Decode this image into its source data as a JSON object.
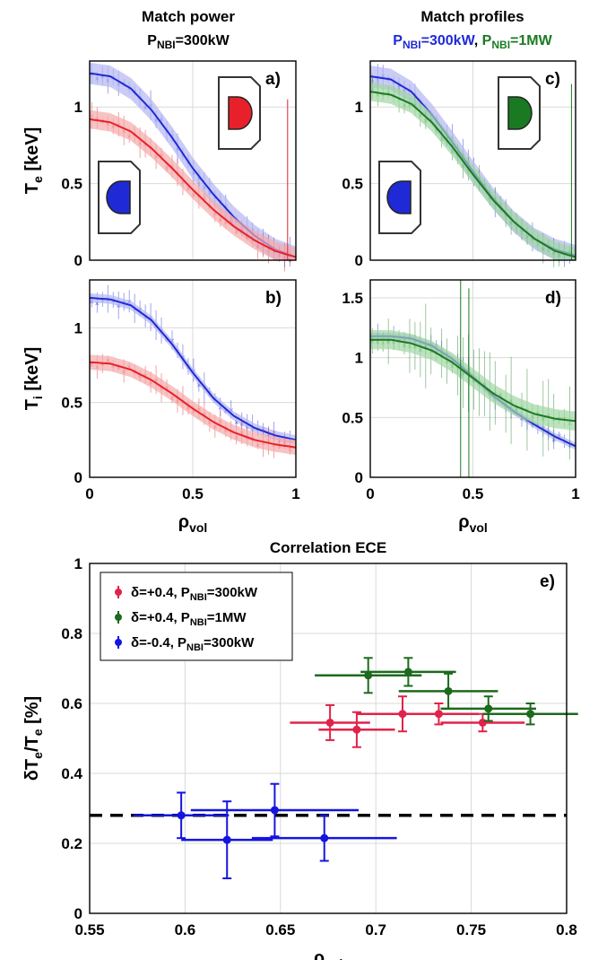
{
  "colors": {
    "red": "#e8202a",
    "blue": "#1f2ad6",
    "green": "#1a7a22",
    "red_band": "#f5a9a9",
    "blue_band": "#b3b6f2",
    "green_band": "#9fd7a3",
    "ece_red": "#e0234a",
    "ece_green": "#1c6a1c",
    "ece_blue": "#1515e0",
    "black": "#000000"
  },
  "headers": {
    "left_title": "Match power",
    "left_sub": {
      "p": "P",
      "sub": "NBI",
      "rest": "=300kW"
    },
    "right_title": "Match profiles",
    "right_sub": [
      {
        "p": "P",
        "sub": "NBI",
        "rest": "=300kW",
        "sep": ",",
        "color": "blue"
      },
      {
        "p": "P",
        "sub": "NBI",
        "rest": "=1MW",
        "color": "green"
      }
    ]
  },
  "chart_data": [
    {
      "panel": "a)",
      "type": "line",
      "ylabel": {
        "main": "T",
        "sub": "e",
        "rest": " [keV]"
      },
      "xlim": [
        0,
        1
      ],
      "ylim": [
        0,
        1.3
      ],
      "yticks": [
        0,
        0.5,
        1
      ],
      "xticks": [
        0,
        0.5,
        1
      ],
      "series": [
        {
          "color": "blue",
          "x": [
            0,
            0.1,
            0.2,
            0.3,
            0.4,
            0.5,
            0.6,
            0.7,
            0.8,
            0.9,
            1.0
          ],
          "y": [
            1.22,
            1.2,
            1.12,
            0.98,
            0.8,
            0.6,
            0.43,
            0.28,
            0.16,
            0.07,
            0.02
          ],
          "band": 0.07
        },
        {
          "color": "red",
          "x": [
            0,
            0.1,
            0.2,
            0.3,
            0.4,
            0.5,
            0.6,
            0.7,
            0.8,
            0.9,
            1.0
          ],
          "y": [
            0.92,
            0.9,
            0.84,
            0.73,
            0.6,
            0.46,
            0.33,
            0.22,
            0.13,
            0.06,
            0.02
          ],
          "band": 0.06
        }
      ],
      "insets": [
        {
          "fill": "red",
          "pos": "top-right",
          "shape": "right-d"
        },
        {
          "fill": "blue",
          "pos": "bottom-left",
          "shape": "left-d"
        }
      ]
    },
    {
      "panel": "b)",
      "type": "line",
      "ylabel": {
        "main": "T",
        "sub": "i",
        "rest": " [keV]"
      },
      "xlabel": {
        "main": "ρ",
        "sub": "vol"
      },
      "xlim": [
        0,
        1
      ],
      "ylim": [
        0,
        1.32
      ],
      "yticks": [
        0,
        0.5,
        1
      ],
      "xticks": [
        0,
        0.5,
        1
      ],
      "xticklabels": [
        "0",
        "0.5",
        "1"
      ],
      "series": [
        {
          "color": "blue",
          "x": [
            0,
            0.1,
            0.2,
            0.3,
            0.4,
            0.5,
            0.6,
            0.7,
            0.8,
            0.9,
            1.0
          ],
          "y": [
            1.2,
            1.19,
            1.15,
            1.05,
            0.89,
            0.7,
            0.53,
            0.41,
            0.33,
            0.28,
            0.25
          ],
          "band": 0.03
        },
        {
          "color": "red",
          "x": [
            0,
            0.1,
            0.2,
            0.3,
            0.4,
            0.5,
            0.6,
            0.7,
            0.8,
            0.9,
            1.0
          ],
          "y": [
            0.77,
            0.76,
            0.72,
            0.65,
            0.56,
            0.46,
            0.37,
            0.3,
            0.25,
            0.22,
            0.2
          ],
          "band": 0.05
        }
      ]
    },
    {
      "panel": "c)",
      "type": "line",
      "xlim": [
        0,
        1
      ],
      "ylim": [
        0,
        1.3
      ],
      "yticks": [
        0,
        0.5,
        1
      ],
      "xticks": [
        0,
        0.5,
        1
      ],
      "series": [
        {
          "color": "blue",
          "x": [
            0,
            0.1,
            0.2,
            0.3,
            0.4,
            0.5,
            0.6,
            0.7,
            0.8,
            0.9,
            1.0
          ],
          "y": [
            1.2,
            1.18,
            1.1,
            0.95,
            0.77,
            0.58,
            0.4,
            0.25,
            0.14,
            0.07,
            0.03
          ],
          "band": 0.07
        },
        {
          "color": "green",
          "x": [
            0,
            0.1,
            0.2,
            0.3,
            0.4,
            0.5,
            0.6,
            0.7,
            0.8,
            0.9,
            1.0
          ],
          "y": [
            1.1,
            1.08,
            1.02,
            0.9,
            0.74,
            0.56,
            0.39,
            0.25,
            0.14,
            0.06,
            0.02
          ],
          "band": 0.06
        }
      ],
      "insets": [
        {
          "fill": "green",
          "pos": "top-right",
          "shape": "right-d"
        },
        {
          "fill": "blue",
          "pos": "bottom-left",
          "shape": "left-d"
        }
      ]
    },
    {
      "panel": "d)",
      "type": "line",
      "xlabel": {
        "main": "ρ",
        "sub": "vol"
      },
      "xlim": [
        0,
        1
      ],
      "ylim": [
        0,
        1.65
      ],
      "yticks": [
        0,
        0.5,
        1,
        1.5
      ],
      "xticks": [
        0,
        0.5,
        1
      ],
      "xticklabels": [
        "0",
        "0.5",
        "1"
      ],
      "series": [
        {
          "color": "blue",
          "x": [
            0,
            0.1,
            0.2,
            0.3,
            0.4,
            0.5,
            0.6,
            0.7,
            0.8,
            0.9,
            1.0
          ],
          "y": [
            1.18,
            1.18,
            1.16,
            1.1,
            0.99,
            0.84,
            0.68,
            0.55,
            0.44,
            0.34,
            0.26
          ],
          "band": 0.03
        },
        {
          "color": "green",
          "x": [
            0,
            0.1,
            0.2,
            0.3,
            0.4,
            0.5,
            0.6,
            0.7,
            0.8,
            0.9,
            1.0
          ],
          "y": [
            1.15,
            1.15,
            1.12,
            1.06,
            0.96,
            0.83,
            0.7,
            0.6,
            0.53,
            0.49,
            0.47
          ],
          "band": 0.08
        }
      ]
    },
    {
      "panel": "e)",
      "type": "scatter",
      "title": "Correlation ECE",
      "xlabel": {
        "main": "ρ",
        "sub": "vol"
      },
      "ylabel": {
        "main": "δT",
        "sub": "e",
        "mid": "/T",
        "sub2": "e",
        "rest": " [%]"
      },
      "xlim": [
        0.55,
        0.8
      ],
      "ylim": [
        0,
        1
      ],
      "xticks": [
        0.55,
        0.6,
        0.65,
        0.7,
        0.75,
        0.8
      ],
      "xticklabels": [
        "0.55",
        "0.6",
        "0.65",
        "0.7",
        "0.75",
        "0.8"
      ],
      "yticks": [
        0,
        0.2,
        0.4,
        0.6,
        0.8,
        1
      ],
      "yticklabels": [
        "0",
        "0.2",
        "0.4",
        "0.6",
        "0.8",
        "1"
      ],
      "grid": true,
      "legend_position": "top-left",
      "reference_line": {
        "y": 0.28,
        "style": "dashed",
        "color": "black"
      },
      "series": [
        {
          "color": "ece_red",
          "legend": {
            "a": "δ=+0.4, P",
            "sub": "NBI",
            "b": "=300kW"
          },
          "points": [
            {
              "x": 0.676,
              "y": 0.545,
              "xlo": 0.655,
              "xhi": 0.697,
              "yerr": 0.05
            },
            {
              "x": 0.69,
              "y": 0.525,
              "xlo": 0.67,
              "xhi": 0.71,
              "yerr": 0.05
            },
            {
              "x": 0.714,
              "y": 0.57,
              "xlo": 0.69,
              "xhi": 0.738,
              "yerr": 0.05
            },
            {
              "x": 0.733,
              "y": 0.57,
              "xlo": 0.712,
              "xhi": 0.754,
              "yerr": 0.03
            },
            {
              "x": 0.756,
              "y": 0.545,
              "xlo": 0.734,
              "xhi": 0.778,
              "yerr": 0.025
            }
          ]
        },
        {
          "color": "ece_green",
          "legend": {
            "a": "δ=+0.4, P",
            "sub": "NBI",
            "b": "=1MW"
          },
          "points": [
            {
              "x": 0.696,
              "y": 0.68,
              "xlo": 0.668,
              "xhi": 0.724,
              "yerr": 0.05
            },
            {
              "x": 0.717,
              "y": 0.69,
              "xlo": 0.692,
              "xhi": 0.742,
              "yerr": 0.04
            },
            {
              "x": 0.738,
              "y": 0.635,
              "xlo": 0.712,
              "xhi": 0.764,
              "yerr": 0.05
            },
            {
              "x": 0.759,
              "y": 0.585,
              "xlo": 0.734,
              "xhi": 0.784,
              "yerr": 0.035
            },
            {
              "x": 0.781,
              "y": 0.57,
              "xlo": 0.756,
              "xhi": 0.806,
              "yerr": 0.03
            }
          ]
        },
        {
          "color": "ece_blue",
          "legend": {
            "a": "δ=-0.4, P",
            "sub": "NBI",
            "b": "=300kW"
          },
          "points": [
            {
              "x": 0.598,
              "y": 0.28,
              "xlo": 0.573,
              "xhi": 0.623,
              "yerr": 0.065
            },
            {
              "x": 0.622,
              "y": 0.21,
              "xlo": 0.598,
              "xhi": 0.646,
              "yerr": 0.11
            },
            {
              "x": 0.647,
              "y": 0.295,
              "xlo": 0.603,
              "xhi": 0.691,
              "yerr": 0.075
            },
            {
              "x": 0.673,
              "y": 0.215,
              "xlo": 0.635,
              "xhi": 0.711,
              "yerr": 0.065
            }
          ]
        }
      ]
    }
  ]
}
